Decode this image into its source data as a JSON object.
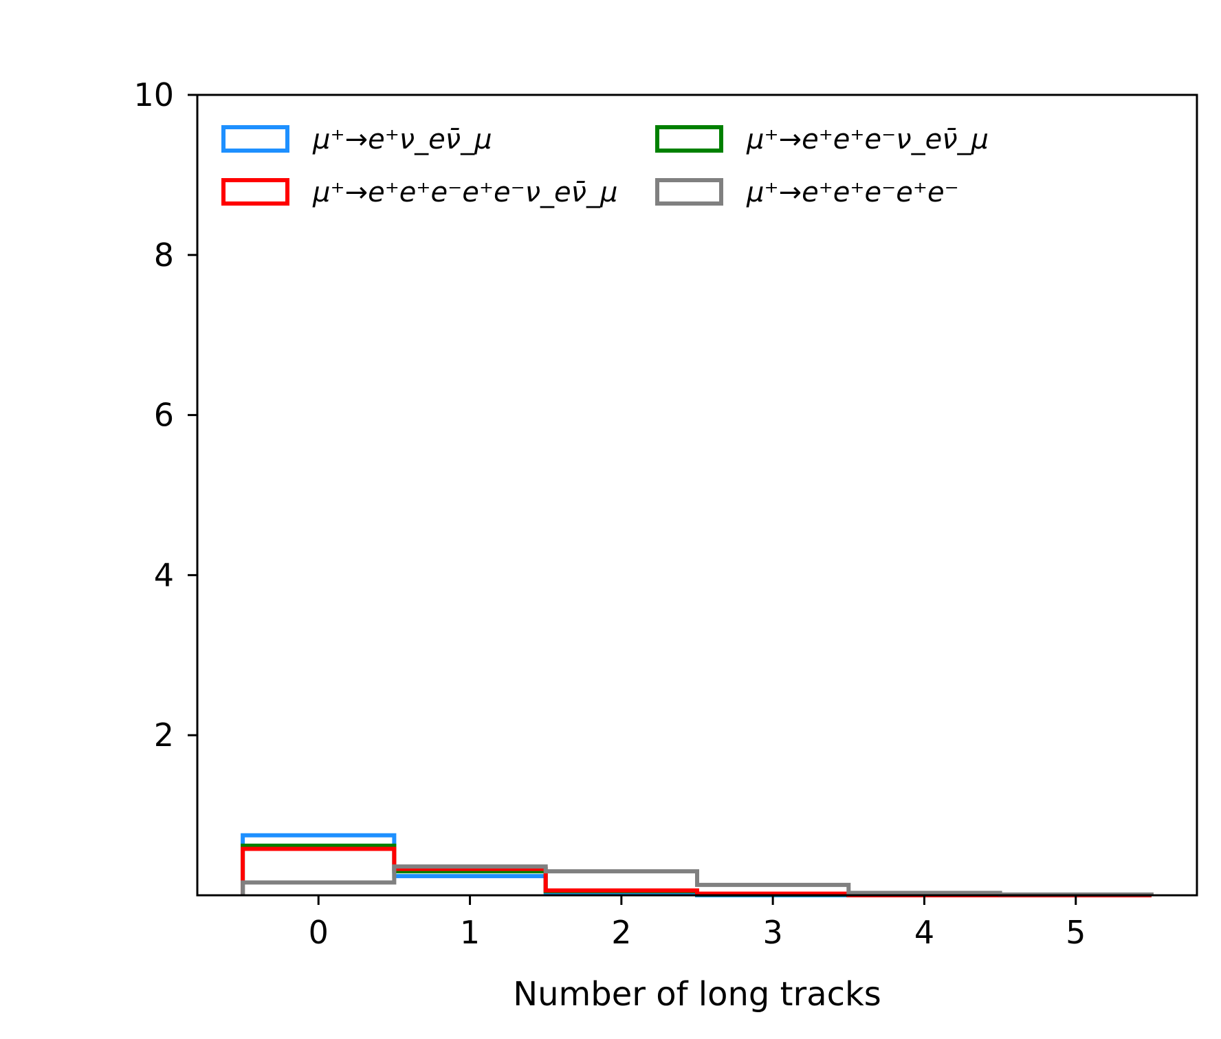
{
  "chart_data": {
    "type": "histogram",
    "xlabel": "Number of long tracks",
    "ylabel": "",
    "xlim": [
      -0.8,
      5.8
    ],
    "ylim": [
      0,
      10
    ],
    "xticks": [
      0,
      1,
      2,
      3,
      4,
      5
    ],
    "yticks": [
      2,
      4,
      6,
      8,
      10
    ],
    "bin_edges": [
      -0.5,
      0.5,
      1.5,
      2.5,
      3.5,
      4.5,
      5.5
    ],
    "grid": false,
    "legend_placement": "top, two columns",
    "series": [
      {
        "name": "μ⁺→e⁺ν_eν̄_μ",
        "color": "#1e90ff",
        "values": [
          0.75,
          0.24,
          0.02,
          0.0,
          0.0,
          0.0
        ]
      },
      {
        "name": "μ⁺→e⁺e⁺e⁻ν_eν̄_μ",
        "color": "#008000",
        "values": [
          0.62,
          0.3,
          0.05,
          0.01,
          0.0,
          0.0
        ]
      },
      {
        "name": "μ⁺→e⁺e⁺e⁻e⁺e⁻ν_eν̄_μ",
        "color": "#ff0000",
        "values": [
          0.58,
          0.33,
          0.06,
          0.02,
          0.0,
          0.0
        ]
      },
      {
        "name": "μ⁺→e⁺e⁺e⁻e⁺e⁻",
        "color": "#808080",
        "values": [
          0.16,
          0.36,
          0.3,
          0.13,
          0.03,
          0.01
        ]
      }
    ]
  }
}
